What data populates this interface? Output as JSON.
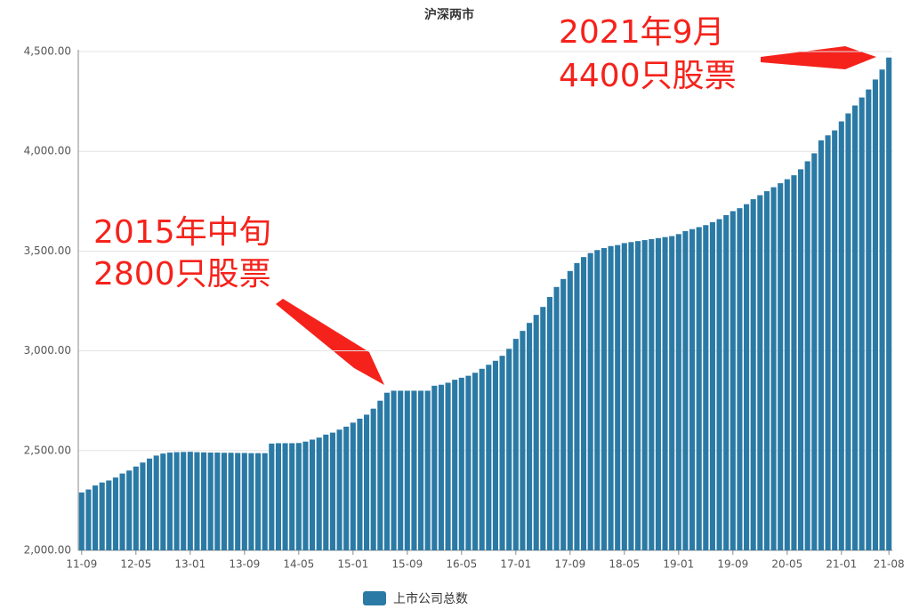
{
  "chart_data": {
    "type": "bar",
    "title": "沪深两市",
    "categories": [
      "11-09",
      null,
      null,
      null,
      null,
      null,
      null,
      null,
      "12-05",
      null,
      null,
      null,
      null,
      null,
      null,
      null,
      "13-01",
      null,
      null,
      null,
      null,
      null,
      null,
      null,
      "13-09",
      null,
      null,
      null,
      null,
      null,
      null,
      null,
      "14-05",
      null,
      null,
      null,
      null,
      null,
      null,
      null,
      "15-01",
      null,
      null,
      null,
      null,
      null,
      null,
      null,
      "15-09",
      null,
      null,
      null,
      null,
      null,
      null,
      null,
      "16-05",
      null,
      null,
      null,
      null,
      null,
      null,
      null,
      "17-01",
      null,
      null,
      null,
      null,
      null,
      null,
      null,
      "17-09",
      null,
      null,
      null,
      null,
      null,
      null,
      null,
      "18-05",
      null,
      null,
      null,
      null,
      null,
      null,
      null,
      "19-01",
      null,
      null,
      null,
      null,
      null,
      null,
      null,
      "19-09",
      null,
      null,
      null,
      null,
      null,
      null,
      null,
      "20-05",
      null,
      null,
      null,
      null,
      null,
      null,
      null,
      "21-01",
      null,
      null,
      null,
      null,
      null,
      null,
      "21-08"
    ],
    "series": [
      {
        "name": "上市公司总数",
        "color": "#2b7aa5",
        "values": [
          2290,
          2305,
          2325,
          2340,
          2350,
          2365,
          2385,
          2400,
          2420,
          2440,
          2460,
          2475,
          2485,
          2490,
          2492,
          2493,
          2494,
          2492,
          2491,
          2490,
          2490,
          2489,
          2489,
          2488,
          2488,
          2487,
          2487,
          2487,
          2535,
          2537,
          2537,
          2537,
          2538,
          2545,
          2555,
          2565,
          2580,
          2590,
          2605,
          2620,
          2640,
          2660,
          2680,
          2710,
          2750,
          2790,
          2800,
          2800,
          2800,
          2800,
          2800,
          2800,
          2825,
          2830,
          2840,
          2855,
          2865,
          2875,
          2890,
          2910,
          2930,
          2950,
          2975,
          3010,
          3060,
          3100,
          3140,
          3180,
          3220,
          3270,
          3320,
          3360,
          3400,
          3440,
          3470,
          3490,
          3505,
          3515,
          3525,
          3530,
          3540,
          3545,
          3550,
          3555,
          3560,
          3565,
          3570,
          3575,
          3585,
          3600,
          3610,
          3620,
          3630,
          3645,
          3660,
          3680,
          3700,
          3715,
          3735,
          3760,
          3780,
          3800,
          3820,
          3840,
          3860,
          3880,
          3910,
          3950,
          3990,
          4055,
          4080,
          4105,
          4150,
          4190,
          4230,
          4270,
          4310,
          4360,
          4410,
          4470
        ]
      }
    ],
    "ylim": [
      2000,
      4500
    ],
    "yticks": [
      {
        "value": 2000,
        "label": "2,000.00"
      },
      {
        "value": 2500,
        "label": "2,500.00"
      },
      {
        "value": 3000,
        "label": "3,000.00"
      },
      {
        "value": 3500,
        "label": "3,500.00"
      },
      {
        "value": 4000,
        "label": "4,000.00"
      },
      {
        "value": 4500,
        "label": "4,500.00"
      }
    ],
    "grid": true,
    "annotations": [
      "2015年中旬",
      "2800只股票",
      "2021年9月",
      "4400只股票"
    ]
  }
}
